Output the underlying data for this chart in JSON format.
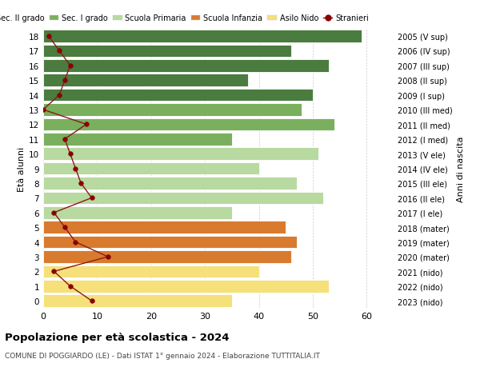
{
  "ages": [
    18,
    17,
    16,
    15,
    14,
    13,
    12,
    11,
    10,
    9,
    8,
    7,
    6,
    5,
    4,
    3,
    2,
    1,
    0
  ],
  "bar_values": [
    59,
    46,
    53,
    38,
    50,
    48,
    54,
    35,
    51,
    40,
    47,
    52,
    35,
    45,
    47,
    46,
    40,
    53,
    35
  ],
  "right_labels": [
    "2005 (V sup)",
    "2006 (IV sup)",
    "2007 (III sup)",
    "2008 (II sup)",
    "2009 (I sup)",
    "2010 (III med)",
    "2011 (II med)",
    "2012 (I med)",
    "2013 (V ele)",
    "2014 (IV ele)",
    "2015 (III ele)",
    "2016 (II ele)",
    "2017 (I ele)",
    "2018 (mater)",
    "2019 (mater)",
    "2020 (mater)",
    "2021 (nido)",
    "2022 (nido)",
    "2023 (nido)"
  ],
  "bar_colors": [
    "#4a7c3f",
    "#4a7c3f",
    "#4a7c3f",
    "#4a7c3f",
    "#4a7c3f",
    "#7aaf5e",
    "#7aaf5e",
    "#7aaf5e",
    "#b8d9a0",
    "#b8d9a0",
    "#b8d9a0",
    "#b8d9a0",
    "#b8d9a0",
    "#d97b2e",
    "#d97b2e",
    "#d97b2e",
    "#f5e07a",
    "#f5e07a",
    "#f5e07a"
  ],
  "stranieri_values": [
    1,
    3,
    5,
    4,
    3,
    0,
    8,
    4,
    5,
    6,
    7,
    9,
    2,
    4,
    6,
    12,
    2,
    5,
    9
  ],
  "legend_labels": [
    "Sec. II grado",
    "Sec. I grado",
    "Scuola Primaria",
    "Scuola Infanzia",
    "Asilo Nido",
    "Stranieri"
  ],
  "legend_colors": [
    "#4a7c3f",
    "#7aaf5e",
    "#b8d9a0",
    "#d97b2e",
    "#f5e07a",
    "#8b0000"
  ],
  "title": "Popolazione per età scolastica - 2024",
  "subtitle": "COMUNE DI POGGIARDO (LE) - Dati ISTAT 1° gennaio 2024 - Elaborazione TUTTITALIA.IT",
  "ylabel_left": "Età alunni",
  "ylabel_right": "Anni di nascita",
  "xlim": [
    0,
    65
  ],
  "background_color": "#ffffff",
  "grid_color": "#cccccc"
}
